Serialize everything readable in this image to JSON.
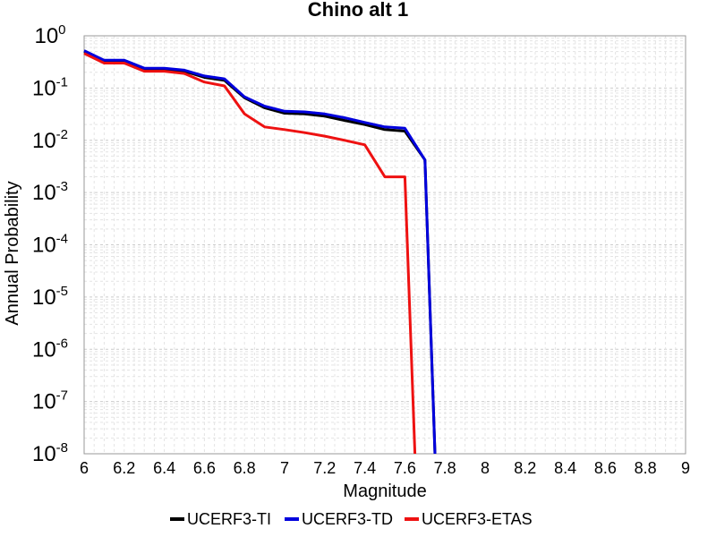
{
  "chart_data": {
    "type": "line",
    "title": "Chino alt 1",
    "xlabel": "Magnitude",
    "ylabel": "Annual Probability",
    "xlim": [
      6,
      9
    ],
    "ylim": [
      1e-08,
      1
    ],
    "yscale": "log",
    "grid": true,
    "legend_position": "bottom",
    "x_ticks": [
      "6",
      "6.2",
      "6.4",
      "6.6",
      "6.8",
      "7",
      "7.2",
      "7.4",
      "7.6",
      "7.8",
      "8",
      "8.2",
      "8.4",
      "8.6",
      "8.8",
      "9"
    ],
    "y_ticks": [
      {
        "base": "10",
        "exp": "0",
        "value": 1
      },
      {
        "base": "10",
        "exp": "-1",
        "value": 0.1
      },
      {
        "base": "10",
        "exp": "-2",
        "value": 0.01
      },
      {
        "base": "10",
        "exp": "-3",
        "value": 0.001
      },
      {
        "base": "10",
        "exp": "-4",
        "value": 0.0001
      },
      {
        "base": "10",
        "exp": "-5",
        "value": 1e-05
      },
      {
        "base": "10",
        "exp": "-6",
        "value": 1e-06
      },
      {
        "base": "10",
        "exp": "-7",
        "value": 1e-07
      },
      {
        "base": "10",
        "exp": "-8",
        "value": 1e-08
      }
    ],
    "series": [
      {
        "name": "UCERF3-TI",
        "color": "#000000",
        "x": [
          6.0,
          6.1,
          6.2,
          6.3,
          6.4,
          6.5,
          6.6,
          6.7,
          6.8,
          6.9,
          7.0,
          7.1,
          7.2,
          7.3,
          7.4,
          7.5,
          7.6,
          7.7,
          7.75
        ],
        "y": [
          0.5,
          0.33,
          0.33,
          0.23,
          0.23,
          0.21,
          0.16,
          0.14,
          0.065,
          0.042,
          0.033,
          0.032,
          0.029,
          0.024,
          0.02,
          0.016,
          0.015,
          0.0042,
          1e-08
        ]
      },
      {
        "name": "UCERF3-TD",
        "color": "#0000dd",
        "x": [
          6.0,
          6.1,
          6.2,
          6.3,
          6.4,
          6.5,
          6.6,
          6.7,
          6.8,
          6.9,
          7.0,
          7.1,
          7.2,
          7.3,
          7.4,
          7.5,
          7.6,
          7.7,
          7.75
        ],
        "y": [
          0.52,
          0.34,
          0.34,
          0.24,
          0.24,
          0.22,
          0.17,
          0.15,
          0.068,
          0.045,
          0.036,
          0.035,
          0.032,
          0.027,
          0.022,
          0.018,
          0.017,
          0.0042,
          1e-08
        ]
      },
      {
        "name": "UCERF3-ETAS",
        "color": "#ee1111",
        "x": [
          6.0,
          6.1,
          6.2,
          6.3,
          6.4,
          6.5,
          6.6,
          6.7,
          6.8,
          6.9,
          7.0,
          7.1,
          7.2,
          7.3,
          7.4,
          7.5,
          7.6,
          7.65
        ],
        "y": [
          0.46,
          0.3,
          0.3,
          0.21,
          0.21,
          0.19,
          0.13,
          0.11,
          0.032,
          0.018,
          0.016,
          0.014,
          0.012,
          0.01,
          0.0082,
          0.002,
          0.002,
          1e-08
        ]
      }
    ]
  }
}
